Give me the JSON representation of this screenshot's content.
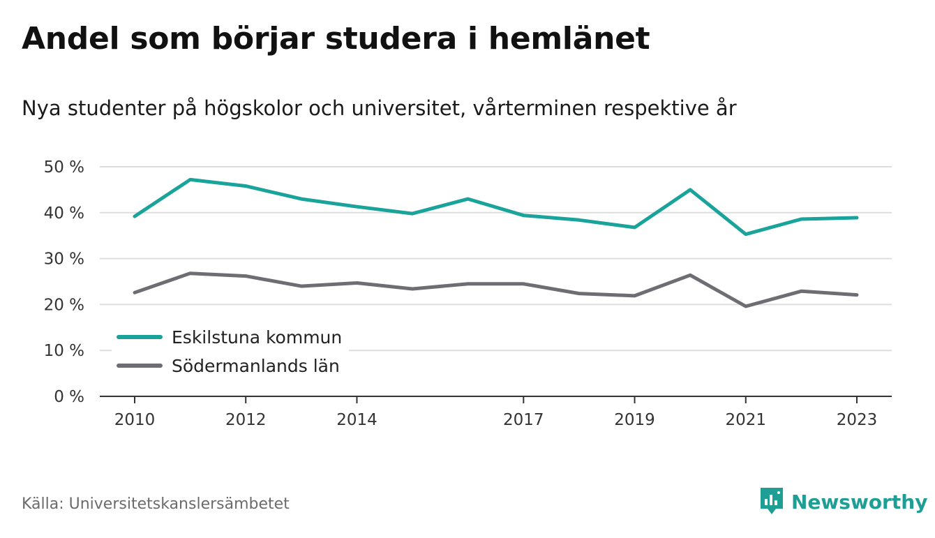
{
  "header": {
    "title": "Andel som börjar studera i hemlänet",
    "subtitle": "Nya studenter på högskolor och universitet, vårterminen respektive år"
  },
  "footer": {
    "source": "Källa: Universitetskanslersämbetet",
    "brand": "Newsworthy",
    "brand_icon": "newsworthy-logo-icon"
  },
  "colors": {
    "eskilstuna": "#1aa39a",
    "sodermanland": "#6e6d74",
    "grid": "#dddddd",
    "axis": "#333333",
    "brand": "#1e9e94"
  },
  "chart_data": {
    "type": "line",
    "x": [
      2010,
      2011,
      2012,
      2013,
      2014,
      2015,
      2016,
      2017,
      2018,
      2019,
      2020,
      2021,
      2022,
      2023
    ],
    "x_tick_labels": [
      "2010",
      "2012",
      "2014",
      "2017",
      "2019",
      "2021",
      "2023"
    ],
    "y_ticks": [
      0,
      10,
      20,
      30,
      40,
      50
    ],
    "y_tick_labels": [
      "0 %",
      "10 %",
      "20 %",
      "30 %",
      "40 %",
      "50 %"
    ],
    "ylim": [
      0,
      50
    ],
    "grid": true,
    "legend_position": "bottom-left",
    "series": [
      {
        "name": "Eskilstuna kommun",
        "color": "#1aa39a",
        "values": [
          39.2,
          47.2,
          45.8,
          43.0,
          41.3,
          39.8,
          43.0,
          39.4,
          38.4,
          36.8,
          45.0,
          35.3,
          38.6,
          38.9
        ]
      },
      {
        "name": "Södermanlands län",
        "color": "#6e6d74",
        "values": [
          22.6,
          26.8,
          26.2,
          24.0,
          24.7,
          23.4,
          24.5,
          24.5,
          22.4,
          21.9,
          26.4,
          19.6,
          22.9,
          22.1
        ]
      }
    ]
  }
}
